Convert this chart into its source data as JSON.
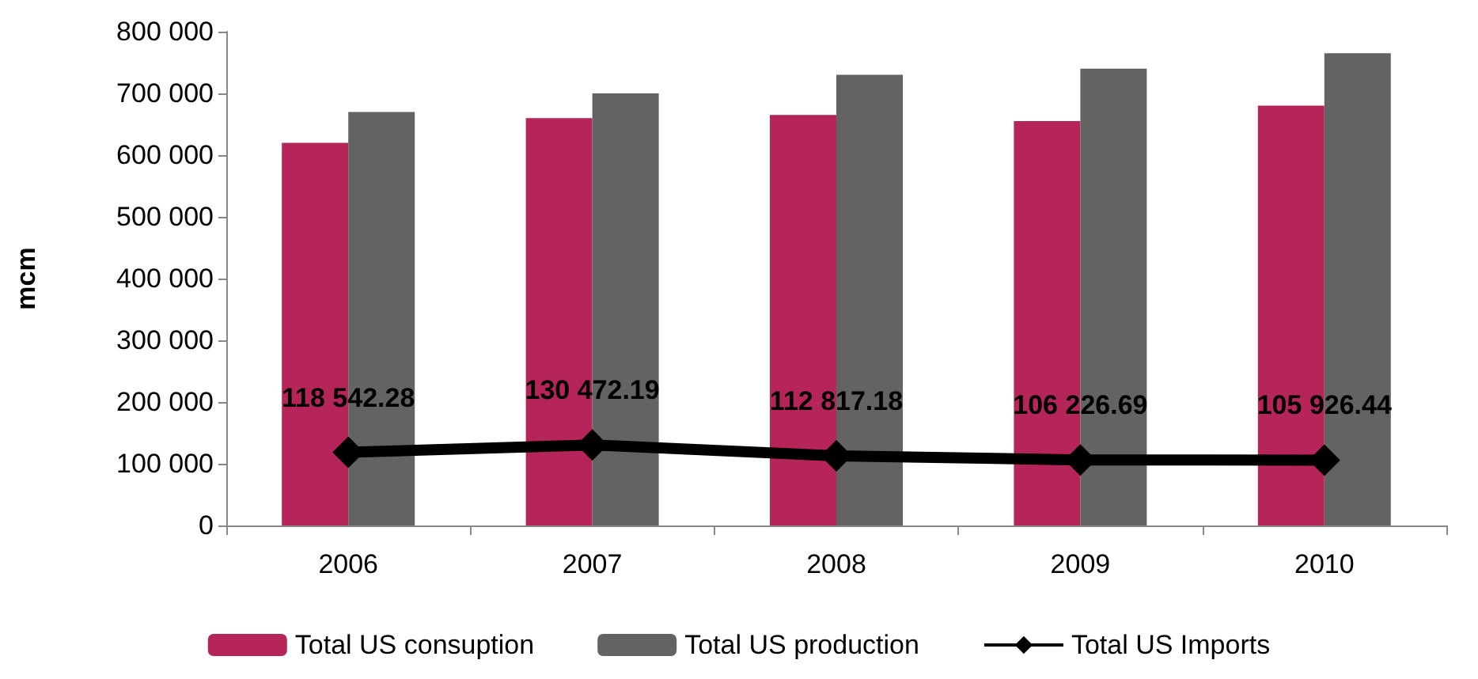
{
  "chart_data": {
    "type": "bar",
    "ylabel": "mcm",
    "categories": [
      "2006",
      "2007",
      "2008",
      "2009",
      "2010"
    ],
    "series": [
      {
        "name": "Total US consuption",
        "color": "#b5255a",
        "values": [
          620000,
          660000,
          665000,
          655000,
          680000
        ]
      },
      {
        "name": "Total US production",
        "color": "#636363",
        "values": [
          670000,
          700000,
          730000,
          740000,
          765000
        ]
      },
      {
        "name": "Total US Imports",
        "type": "line",
        "color": "#000000",
        "marker": "diamond",
        "values": [
          118542.28,
          130472.19,
          112817.18,
          106226.69,
          105926.44
        ],
        "value_labels": [
          "118 542.28",
          "130 472.19",
          "112 817.18",
          "106 226.69",
          "105 926.44"
        ]
      }
    ],
    "ylim": [
      0,
      800000
    ],
    "yticks": [
      {
        "value": 0,
        "label": "0"
      },
      {
        "value": 100000,
        "label": "100 000"
      },
      {
        "value": 200000,
        "label": "200 000"
      },
      {
        "value": 300000,
        "label": "300 000"
      },
      {
        "value": 400000,
        "label": "400 000"
      },
      {
        "value": 500000,
        "label": "500 000"
      },
      {
        "value": 600000,
        "label": "600 000"
      },
      {
        "value": 700000,
        "label": "700 000"
      },
      {
        "value": 800000,
        "label": "800 000"
      }
    ],
    "grid": false,
    "legend": "bottom"
  }
}
